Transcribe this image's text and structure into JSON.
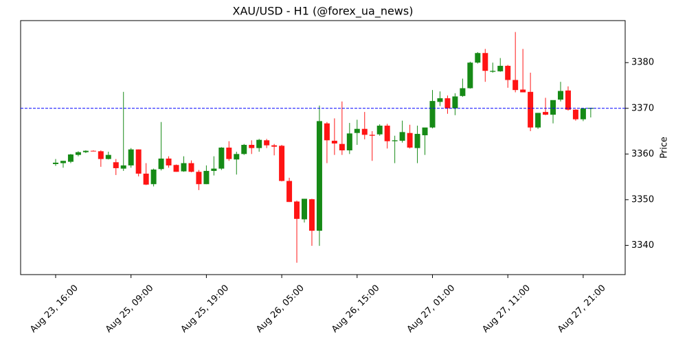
{
  "chart_data": {
    "type": "candlestick",
    "title": "XAU/USD - H1 (@forex_ua_news)",
    "ylabel": "Price",
    "y_axis_side": "right",
    "categories": [
      "Aug 23, 16:00",
      null,
      null,
      null,
      null,
      null,
      null,
      null,
      null,
      null,
      "Aug 25, 09:00",
      null,
      null,
      null,
      null,
      null,
      null,
      null,
      null,
      null,
      "Aug 25, 19:00",
      null,
      null,
      null,
      null,
      null,
      null,
      null,
      null,
      null,
      "Aug 26, 05:00",
      null,
      null,
      null,
      null,
      null,
      null,
      null,
      null,
      null,
      "Aug 26, 15:00",
      null,
      null,
      null,
      null,
      null,
      null,
      null,
      null,
      null,
      "Aug 27, 01:00",
      null,
      null,
      null,
      null,
      null,
      null,
      null,
      null,
      null,
      "Aug 27, 11:00",
      null,
      null,
      null,
      null,
      null,
      null,
      null,
      null,
      null,
      "Aug 27, 21:00",
      null
    ],
    "open": [
      3357.8,
      3358.0,
      3358.3,
      3359.8,
      3360.4,
      3360.7,
      3360.6,
      3358.9,
      3358.2,
      3356.8,
      3357.5,
      3361.0,
      3355.7,
      3353.4,
      3356.7,
      3359.0,
      3357.6,
      3356.2,
      3358.0,
      3356.1,
      3353.4,
      3356.3,
      3356.8,
      3361.4,
      3358.8,
      3360.0,
      3362.0,
      3361.3,
      3363.0,
      3361.9,
      3361.8,
      3354.1,
      3349.6,
      3345.7,
      3350.1,
      3343.2,
      3366.7,
      3362.9,
      3362.2,
      3360.8,
      3364.6,
      3365.5,
      3364.2,
      3364.3,
      3366.2,
      3362.8,
      3362.9,
      3364.6,
      3361.3,
      3364.1,
      3365.8,
      3371.4,
      3372.2,
      3370.0,
      3372.7,
      3374.4,
      3380.0,
      3382.1,
      3378.0,
      3378.1,
      3379.3,
      3376.2,
      3374.1,
      3373.6,
      3365.8,
      3369.2,
      3368.6,
      3371.9,
      3373.9,
      3369.7,
      3367.6,
      3369.9
    ],
    "high": [
      3358.9,
      3358.5,
      3360.0,
      3360.6,
      3360.8,
      3360.8,
      3360.8,
      3360.5,
      3358.9,
      3373.6,
      3361.3,
      3361.0,
      3358.0,
      3356.8,
      3367.0,
      3359.5,
      3357.7,
      3359.5,
      3358.6,
      3356.5,
      3357.5,
      3359.5,
      3361.5,
      3362.8,
      3360.5,
      3362.2,
      3363.0,
      3363.3,
      3363.3,
      3362.2,
      3362.0,
      3354.8,
      3349.8,
      3350.2,
      3350.2,
      3370.6,
      3367.0,
      3367.8,
      3371.5,
      3366.8,
      3367.5,
      3369.2,
      3365.0,
      3366.5,
      3366.6,
      3364.0,
      3367.3,
      3366.4,
      3366.2,
      3365.6,
      3374.0,
      3373.7,
      3372.8,
      3373.3,
      3376.5,
      3380.2,
      3382.3,
      3383.0,
      3380.0,
      3381.0,
      3379.5,
      3386.7,
      3383.0,
      3377.8,
      3369.0,
      3372.3,
      3371.5,
      3375.8,
      3374.8,
      3369.8,
      3370.0,
      3370.0
    ],
    "low": [
      3357.4,
      3357.0,
      3358.0,
      3359.5,
      3360.2,
      3360.6,
      3357.2,
      3358.8,
      3355.4,
      3356.3,
      3357.0,
      3355.1,
      3353.2,
      3352.9,
      3356.4,
      3357.0,
      3356.1,
      3356.1,
      3356.0,
      3352.1,
      3353.4,
      3355.3,
      3356.5,
      3358.5,
      3355.5,
      3359.8,
      3360.0,
      3360.5,
      3361.3,
      3359.7,
      3354.0,
      3349.5,
      3336.2,
      3345.0,
      3339.9,
      3339.9,
      3358.0,
      3359.8,
      3359.8,
      3360.0,
      3362.0,
      3363.2,
      3358.5,
      3364.0,
      3361.2,
      3358.0,
      3362.5,
      3361.2,
      3358.0,
      3359.8,
      3365.6,
      3370.5,
      3368.8,
      3368.5,
      3372.5,
      3374.3,
      3379.8,
      3375.8,
      3377.8,
      3378.0,
      3374.5,
      3373.5,
      3373.6,
      3365.0,
      3365.5,
      3368.5,
      3366.7,
      3371.5,
      3369.5,
      3367.3,
      3367.2,
      3368.0
    ],
    "close": [
      3358.1,
      3358.5,
      3359.9,
      3360.4,
      3360.7,
      3360.6,
      3358.9,
      3359.8,
      3356.9,
      3357.5,
      3361.0,
      3355.7,
      3353.3,
      3356.6,
      3359.0,
      3357.5,
      3356.1,
      3358.0,
      3356.1,
      3353.4,
      3356.3,
      3356.8,
      3361.4,
      3358.9,
      3360.0,
      3362.0,
      3361.3,
      3363.1,
      3361.9,
      3361.6,
      3354.1,
      3349.5,
      3345.8,
      3350.2,
      3343.2,
      3367.2,
      3363.0,
      3362.3,
      3360.8,
      3364.5,
      3365.5,
      3364.2,
      3364.0,
      3366.2,
      3362.8,
      3363.0,
      3364.8,
      3361.4,
      3364.4,
      3365.8,
      3371.6,
      3372.2,
      3370.0,
      3372.6,
      3374.4,
      3380.0,
      3382.1,
      3378.2,
      3378.2,
      3379.3,
      3376.2,
      3374.0,
      3373.5,
      3365.8,
      3369.0,
      3368.6,
      3371.8,
      3373.8,
      3369.7,
      3367.6,
      3370.0,
      3370.1
    ],
    "up_color": "#168a16",
    "down_color": "#ff1414",
    "hline": 3370,
    "hline_color": "#0000ff",
    "ylim": [
      3333.6,
      3389.2
    ],
    "yticks": [
      3340,
      3350,
      3360,
      3370,
      3380
    ]
  }
}
